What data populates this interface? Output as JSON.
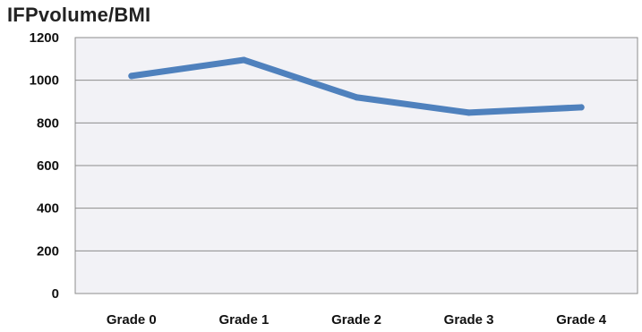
{
  "chart_data": {
    "type": "line",
    "title": "IFPvolume/BMI",
    "xlabel": "",
    "ylabel": "",
    "categories": [
      "Grade 0",
      "Grade 1",
      "Grade 2",
      "Grade 3",
      "Grade 4"
    ],
    "series": [
      {
        "values": [
          1020,
          1095,
          920,
          848,
          873
        ]
      }
    ],
    "ylim": [
      0,
      1200
    ],
    "yticks": [
      0,
      200,
      400,
      600,
      800,
      1000,
      1200
    ],
    "grid": true,
    "legend": "none",
    "colors": {
      "line": "#4F81BD",
      "plot_background": "#F2F2F6",
      "gridline": "#8C8C8C"
    }
  }
}
